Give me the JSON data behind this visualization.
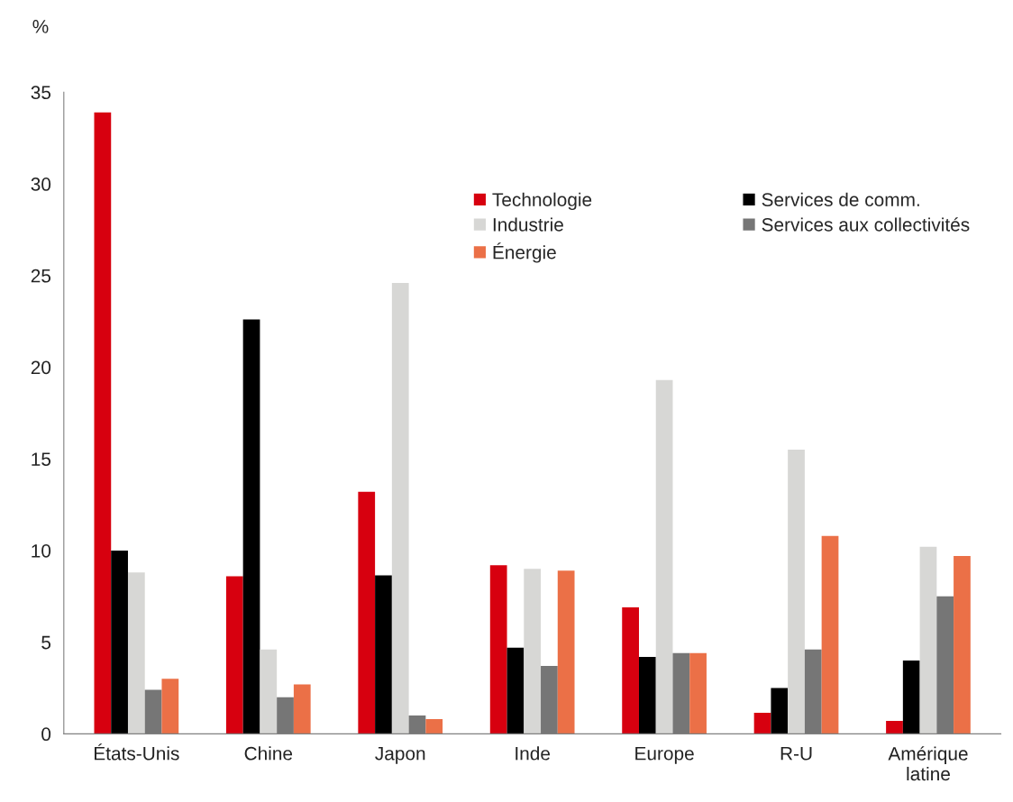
{
  "chart_data": {
    "type": "bar",
    "ylabel": "%",
    "categories": [
      "États-Unis",
      "Chine",
      "Japon",
      "Inde",
      "Europe",
      "R-U",
      "Amérique\nlatine"
    ],
    "series": [
      {
        "name": "Technologie",
        "color": "#d7000f",
        "values": [
          33.9,
          8.6,
          13.2,
          9.2,
          6.9,
          1.15,
          0.7
        ]
      },
      {
        "name": "Services de comm.",
        "color": "#000000",
        "values": [
          10.0,
          22.6,
          8.65,
          4.7,
          4.2,
          2.5,
          4.0
        ]
      },
      {
        "name": "Industrie",
        "color": "#d7d7d5",
        "values": [
          8.8,
          4.6,
          24.6,
          9.0,
          19.3,
          15.5,
          10.2
        ]
      },
      {
        "name": "Services aux collectivités",
        "color": "#767676",
        "values": [
          2.4,
          2.0,
          1.0,
          3.7,
          4.4,
          4.6,
          7.5
        ]
      },
      {
        "name": "Énergie",
        "color": "#eb7047",
        "values": [
          3.0,
          2.7,
          0.8,
          8.9,
          4.4,
          10.8,
          9.7
        ]
      }
    ],
    "ylim": [
      0,
      35
    ],
    "yticks": [
      0,
      5,
      10,
      15,
      20,
      25,
      30,
      35
    ],
    "grid": false,
    "legend": "top right"
  }
}
